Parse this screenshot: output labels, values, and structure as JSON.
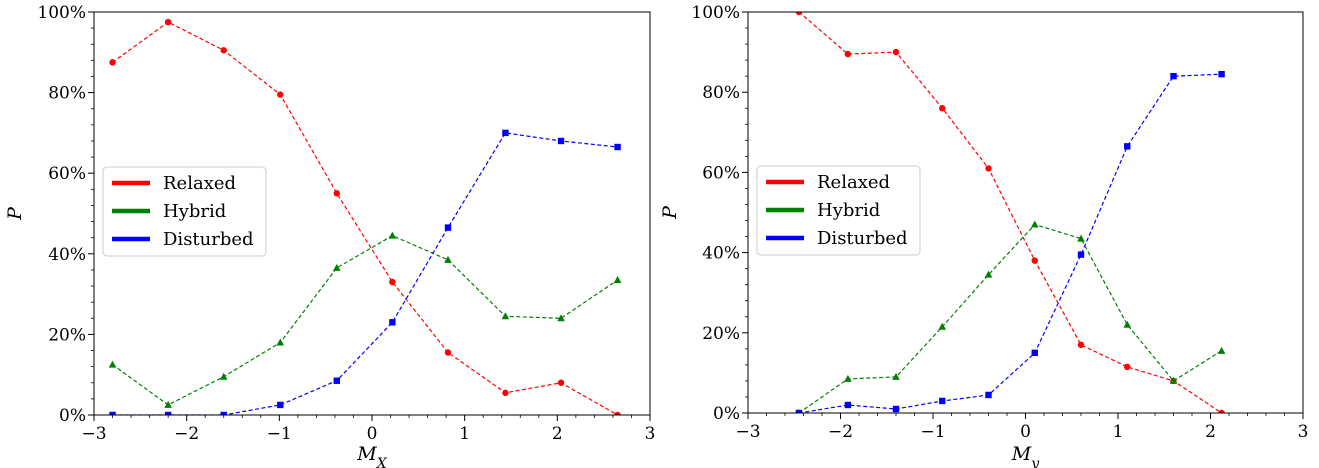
{
  "chart_data": [
    {
      "type": "line",
      "xlabel": "M_X",
      "ylabel": "P",
      "xlabel_main": "M",
      "xlabel_sub": "X",
      "xlim": [
        -3,
        3
      ],
      "ylim": [
        0,
        100
      ],
      "xticks": [
        -3,
        -2,
        -1,
        0,
        1,
        2,
        3
      ],
      "xtick_labels": [
        "−3",
        "−2",
        "−1",
        "0",
        "1",
        "2",
        "3"
      ],
      "yticks": [
        0,
        20,
        40,
        60,
        80,
        100
      ],
      "ytick_labels": [
        "0%",
        "20%",
        "40%",
        "60%",
        "80%",
        "100%"
      ],
      "legend_position": "center-left",
      "grid": false,
      "series": [
        {
          "name": "Relaxed",
          "color": "#ff0000",
          "marker": "circle",
          "x": [
            -2.8,
            -2.2,
            -1.6,
            -0.99,
            -0.38,
            0.22,
            0.82,
            1.44,
            2.04,
            2.65
          ],
          "y": [
            87.5,
            97.5,
            90.5,
            79.5,
            55.0,
            33.0,
            15.5,
            5.5,
            8.0,
            0.0
          ]
        },
        {
          "name": "Hybrid",
          "color": "#008000",
          "marker": "triangle",
          "x": [
            -2.8,
            -2.2,
            -1.6,
            -0.99,
            -0.38,
            0.22,
            0.82,
            1.44,
            2.04,
            2.65
          ],
          "y": [
            12.5,
            2.5,
            9.5,
            18.0,
            36.5,
            44.5,
            38.5,
            24.5,
            24.0,
            33.5
          ]
        },
        {
          "name": "Disturbed",
          "color": "#0000ff",
          "marker": "square",
          "x": [
            -2.8,
            -2.2,
            -1.6,
            -0.99,
            -0.38,
            0.22,
            0.82,
            1.44,
            2.04,
            2.65
          ],
          "y": [
            0.0,
            0.0,
            0.0,
            2.5,
            8.5,
            23.0,
            46.5,
            70.0,
            68.0,
            66.5
          ]
        }
      ]
    },
    {
      "type": "line",
      "xlabel": "M_y",
      "ylabel": "P",
      "xlabel_main": "M",
      "xlabel_sub": "y",
      "xlim": [
        -3,
        3
      ],
      "ylim": [
        0,
        100
      ],
      "xticks": [
        -3,
        -2,
        -1,
        0,
        1,
        2,
        3
      ],
      "xtick_labels": [
        "−3",
        "−2",
        "−1",
        "0",
        "1",
        "2",
        "3"
      ],
      "yticks": [
        0,
        20,
        40,
        60,
        80,
        100
      ],
      "ytick_labels": [
        "0%",
        "20%",
        "40%",
        "60%",
        "80%",
        "100%"
      ],
      "legend_position": "center-left",
      "grid": false,
      "series": [
        {
          "name": "Relaxed",
          "color": "#ff0000",
          "marker": "circle",
          "x": [
            -2.45,
            -1.92,
            -1.4,
            -0.9,
            -0.4,
            0.1,
            0.6,
            1.1,
            1.6,
            2.12
          ],
          "y": [
            100.0,
            89.5,
            90.0,
            76.0,
            61.0,
            38.0,
            17.0,
            11.5,
            8.0,
            0.0
          ]
        },
        {
          "name": "Hybrid",
          "color": "#008000",
          "marker": "triangle",
          "x": [
            -2.45,
            -1.92,
            -1.4,
            -0.9,
            -0.4,
            0.1,
            0.6,
            1.1,
            1.6,
            2.12
          ],
          "y": [
            0.0,
            8.5,
            9.0,
            21.5,
            34.5,
            47.0,
            43.5,
            22.0,
            8.0,
            15.5
          ]
        },
        {
          "name": "Disturbed",
          "color": "#0000ff",
          "marker": "square",
          "x": [
            -2.45,
            -1.92,
            -1.4,
            -0.9,
            -0.4,
            0.1,
            0.6,
            1.1,
            1.6,
            2.12
          ],
          "y": [
            0.0,
            2.0,
            1.0,
            3.0,
            4.5,
            15.0,
            39.5,
            66.5,
            84.0,
            84.5
          ]
        }
      ]
    }
  ]
}
